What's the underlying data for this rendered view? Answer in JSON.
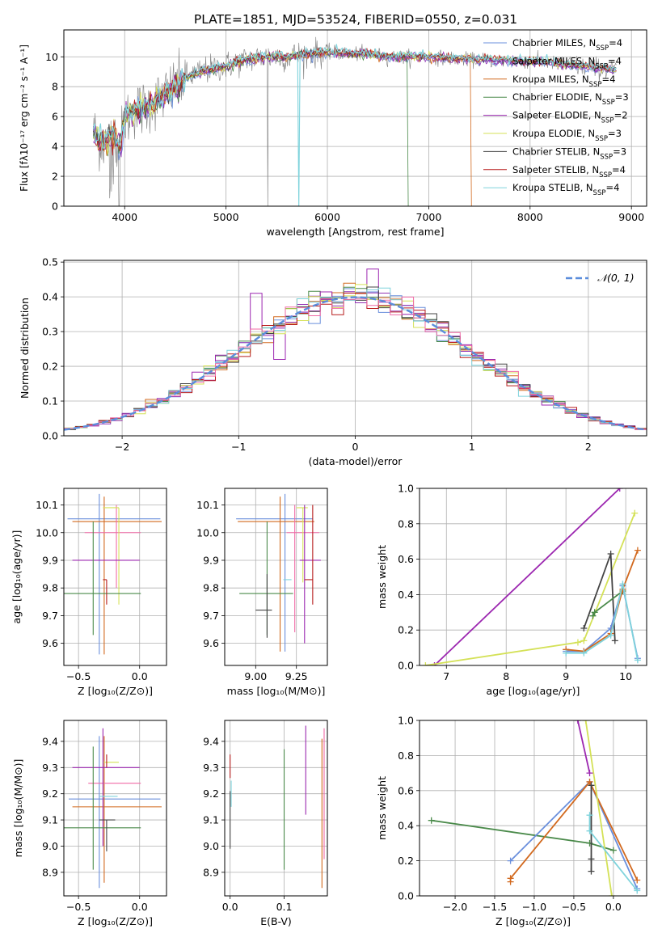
{
  "figure_title": "PLATE=1851, MJD=53524, FIBERID=0550, z=0.031",
  "colors": {
    "chabrier_miles": "#6a8fdc",
    "salpeter_miles": "#9232b4",
    "kroupa_miles": "#d2691e",
    "chabrier_elodie": "#4a8a4a",
    "salpeter_elodie": "#9c27b0",
    "kroupa_elodie": "#d4e157",
    "chabrier_stelib": "#444444",
    "salpeter_stelib": "#b71c1c",
    "kroupa_stelib": "#7fd3dc",
    "data": "#808080",
    "pink": "#f06aa6",
    "gauss": "#5b8ddb",
    "grid": "#b0b0b0"
  },
  "chart_data": [
    {
      "id": "spectrum",
      "type": "line",
      "xlabel": "wavelength [Angstrom, rest frame]",
      "ylabel": "Flux [fλ10⁻¹⁷ erg cm⁻² s⁻¹ A⁻¹]",
      "xlim": [
        3400,
        9150
      ],
      "ylim": [
        0,
        11.8
      ],
      "xticks": [
        4000,
        5000,
        6000,
        7000,
        8000,
        9000
      ],
      "yticks": [
        0,
        2,
        4,
        6,
        8,
        10
      ],
      "legend_position": "top-right",
      "legend": [
        {
          "label": "Chabrier MILES, N",
          "sub": "SSP",
          "suffix": "=4",
          "color": "#6a8fdc"
        },
        {
          "label": "Salpeter MILES, N",
          "sub": "SSP",
          "suffix": "=4",
          "color": "#9232b4"
        },
        {
          "label": "Kroupa MILES, N",
          "sub": "SSP",
          "suffix": "=4",
          "color": "#d2691e"
        },
        {
          "label": "Chabrier ELODIE, N",
          "sub": "SSP",
          "suffix": "=3",
          "color": "#4a8a4a"
        },
        {
          "label": "Salpeter ELODIE, N",
          "sub": "SSP",
          "suffix": "=2",
          "color": "#9c27b0"
        },
        {
          "label": "Kroupa ELODIE, N",
          "sub": "SSP",
          "suffix": "=3",
          "color": "#d4e157"
        },
        {
          "label": "Chabrier STELIB, N",
          "sub": "SSP",
          "suffix": "=3",
          "color": "#444444"
        },
        {
          "label": "Salpeter STELIB, N",
          "sub": "SSP",
          "suffix": "=4",
          "color": "#b71c1c"
        },
        {
          "label": "Kroupa STELIB, N",
          "sub": "SSP",
          "suffix": "=4",
          "color": "#7fd3dc"
        }
      ],
      "continuum_x": [
        3700,
        3750,
        3800,
        3850,
        3900,
        3950,
        4000,
        4100,
        4200,
        4300,
        4400,
        4500,
        4600,
        4800,
        5000,
        5200,
        5400,
        5600,
        5800,
        6000,
        6200,
        6400,
        6600,
        6800,
        7000,
        7200,
        7400,
        7600,
        7800,
        8000,
        8200,
        8400,
        8600,
        8850
      ],
      "continuum_y": [
        5.0,
        4.3,
        4.2,
        4.6,
        4.8,
        4.0,
        5.8,
        6.4,
        6.6,
        7.0,
        7.5,
        8.0,
        8.6,
        9.1,
        9.4,
        9.8,
        10.0,
        10.0,
        10.2,
        10.3,
        10.2,
        10.2,
        10.0,
        10.0,
        10.0,
        9.9,
        9.8,
        9.8,
        9.7,
        9.7,
        9.6,
        9.4,
        9.3,
        9.1
      ]
    },
    {
      "id": "residuals",
      "type": "bar",
      "xlabel": "(data-model)/error",
      "ylabel": "Normed distribution",
      "xlim": [
        -2.5,
        2.5
      ],
      "ylim": [
        0,
        0.505
      ],
      "xticks": [
        -2,
        -1,
        0,
        1,
        2
      ],
      "yticks": [
        0.0,
        0.1,
        0.2,
        0.3,
        0.4,
        0.5
      ],
      "legend_label": "𝒩(0, 1)",
      "legend_position": "top-right",
      "bin_width": 0.1
    },
    {
      "id": "age_vs_Z",
      "type": "scatter",
      "xlabel": "Z [log₁₀(Z/Z⊙)]",
      "ylabel": "age  [log₁₀(age/yr)]",
      "xlim": [
        -0.62,
        0.22
      ],
      "ylim": [
        9.52,
        10.16
      ],
      "xticks": [
        -0.5,
        0.0
      ],
      "yticks": [
        9.6,
        9.7,
        9.8,
        9.9,
        10.0,
        10.1
      ],
      "points": [
        {
          "model": "chabrier_miles",
          "x": -0.33,
          "xerr": [
            0.26,
            0.5
          ],
          "y": 10.05,
          "yerr": [
            0.49,
            0.09
          ]
        },
        {
          "model": "kroupa_miles",
          "x": -0.29,
          "xerr": [
            0.26,
            0.47
          ],
          "y": 10.04,
          "yerr": [
            0.48,
            0.09
          ]
        },
        {
          "model": "pink",
          "x": -0.19,
          "xerr": [
            0.26,
            0.2
          ],
          "y": 10.0,
          "yerr": [
            0.2,
            0.1
          ]
        },
        {
          "model": "kroupa_elodie",
          "x": -0.17,
          "xerr": [
            0.13,
            0.0
          ],
          "y": 10.09,
          "yerr": [
            0.35,
            0.0
          ]
        },
        {
          "model": "salpeter_elodie",
          "x": -0.3,
          "xerr": [
            0.25,
            0.3
          ],
          "y": 9.9,
          "yerr": [
            0.0,
            0.0
          ]
        },
        {
          "model": "chabrier_elodie",
          "x": -0.38,
          "xerr": [
            0.24,
            0.39
          ],
          "y": 9.78,
          "yerr": [
            0.15,
            0.26
          ]
        },
        {
          "model": "salpeter_stelib",
          "x": -0.27,
          "xerr": [
            0.03,
            0.0
          ],
          "y": 9.83,
          "yerr": [
            0.09,
            0.0
          ]
        },
        {
          "model": "chabrier_stelib",
          "x": -0.27,
          "xerr": [
            0.0,
            0.0
          ],
          "y": 9.72,
          "yerr": [
            0.0,
            0.0
          ]
        },
        {
          "model": "kroupa_stelib",
          "x": -0.33,
          "xerr": [
            0.0,
            0.0
          ],
          "y": 9.6,
          "yerr": [
            0.0,
            0.0
          ]
        }
      ]
    },
    {
      "id": "age_vs_mass",
      "type": "scatter",
      "xlabel": "mass [log₁₀(M/M⊙)]",
      "ylabel": "",
      "xlim": [
        8.81,
        9.44
      ],
      "ylim": [
        9.52,
        10.16
      ],
      "xticks": [
        9.0,
        9.25
      ],
      "xticklabels": [
        "9.00",
        "9.25"
      ],
      "yticks": [
        9.6,
        9.7,
        9.8,
        9.9,
        10.0,
        10.1
      ],
      "points": [
        {
          "model": "chabrier_miles",
          "x": 9.18,
          "xerr": [
            0.3,
            0.17
          ],
          "y": 10.05,
          "yerr": [
            0.48,
            0.09
          ]
        },
        {
          "model": "kroupa_miles",
          "x": 9.15,
          "xerr": [
            0.26,
            0.21
          ],
          "y": 10.04,
          "yerr": [
            0.47,
            0.09
          ]
        },
        {
          "model": "pink",
          "x": 9.24,
          "xerr": [
            0.05,
            0.15
          ],
          "y": 10.0,
          "yerr": [
            0.36,
            0.1
          ]
        },
        {
          "model": "kroupa_elodie",
          "x": 9.29,
          "xerr": [
            0.04,
            0.03
          ],
          "y": 10.09,
          "yerr": [
            0.27,
            0.0
          ]
        },
        {
          "model": "salpeter_elodie",
          "x": 9.3,
          "xerr": [
            0.03,
            0.1
          ],
          "y": 9.9,
          "yerr": [
            0.3,
            0.2
          ]
        },
        {
          "model": "chabrier_elodie",
          "x": 9.07,
          "xerr": [
            0.17,
            0.16
          ],
          "y": 9.78,
          "yerr": [
            0.15,
            0.26
          ]
        },
        {
          "model": "salpeter_stelib",
          "x": 9.35,
          "xerr": [
            0.05,
            0.0
          ],
          "y": 9.83,
          "yerr": [
            0.09,
            0.27
          ]
        },
        {
          "model": "chabrier_stelib",
          "x": 9.07,
          "xerr": [
            0.07,
            0.03
          ],
          "y": 9.72,
          "yerr": [
            0.1,
            0.13
          ]
        },
        {
          "model": "kroupa_stelib",
          "x": 9.19,
          "xerr": [
            0.02,
            0.03
          ],
          "y": 9.83,
          "yerr": [
            0.0,
            0.0
          ]
        }
      ]
    },
    {
      "id": "mass_weight_vs_age",
      "type": "line",
      "xlabel": "age  [log₁₀(age/yr)]",
      "ylabel": "mass weight",
      "xlim": [
        6.55,
        10.35
      ],
      "ylim": [
        0,
        1.0
      ],
      "xticks": [
        7,
        8,
        9,
        10
      ],
      "yticks": [
        0.0,
        0.2,
        0.4,
        0.6,
        0.8,
        1.0
      ],
      "series": [
        {
          "model": "salpeter_elodie",
          "x": [
            6.8,
            9.9
          ],
          "y": [
            0.0,
            1.0
          ]
        },
        {
          "model": "kroupa_elodie",
          "x": [
            6.65,
            9.2,
            9.3,
            10.15
          ],
          "y": [
            0.0,
            0.13,
            0.14,
            0.86
          ]
        },
        {
          "model": "chabrier_stelib",
          "x": [
            9.3,
            9.75,
            9.82
          ],
          "y": [
            0.21,
            0.63,
            0.14
          ]
        },
        {
          "model": "chabrier_elodie",
          "x": [
            9.45,
            9.48,
            9.95
          ],
          "y": [
            0.28,
            0.3,
            0.42
          ]
        },
        {
          "model": "chabrier_miles",
          "x": [
            9.0,
            9.3,
            9.75,
            9.95,
            10.2
          ],
          "y": [
            0.08,
            0.08,
            0.21,
            0.45,
            0.04
          ]
        },
        {
          "model": "kroupa_miles",
          "x": [
            9.0,
            9.3,
            9.75,
            9.95,
            10.2
          ],
          "y": [
            0.09,
            0.08,
            0.18,
            0.43,
            0.65
          ]
        },
        {
          "model": "kroupa_stelib",
          "x": [
            9.0,
            9.3,
            9.75,
            9.95,
            10.2
          ],
          "y": [
            0.07,
            0.07,
            0.17,
            0.46,
            0.03
          ]
        }
      ]
    },
    {
      "id": "mass_vs_Z",
      "type": "scatter",
      "xlabel": "Z [log₁₀(Z/Z⊙)]",
      "ylabel": "mass [log₁₀(M/M⊙)]",
      "xlim": [
        -0.62,
        0.22
      ],
      "ylim": [
        8.81,
        9.48
      ],
      "xticks": [
        -0.5,
        0.0
      ],
      "yticks": [
        8.9,
        9.0,
        9.1,
        9.2,
        9.3,
        9.4
      ],
      "points": [
        {
          "model": "chabrier_miles",
          "x": -0.33,
          "xerr": [
            0.25,
            0.5
          ],
          "y": 9.18,
          "yerr": [
            0.34,
            0.24
          ]
        },
        {
          "model": "kroupa_miles",
          "x": -0.29,
          "xerr": [
            0.26,
            0.47
          ],
          "y": 9.15,
          "yerr": [
            0.29,
            0.27
          ]
        },
        {
          "model": "pink",
          "x": -0.19,
          "xerr": [
            0.23,
            0.2
          ],
          "y": 9.24,
          "yerr": [
            0.0,
            0.0
          ]
        },
        {
          "model": "kroupa_elodie",
          "x": -0.17,
          "xerr": [
            0.13,
            0.0
          ],
          "y": 9.32,
          "yerr": [
            0.0,
            0.0
          ]
        },
        {
          "model": "salpeter_elodie",
          "x": -0.3,
          "xerr": [
            0.25,
            0.3
          ],
          "y": 9.3,
          "yerr": [
            0.3,
            0.15
          ]
        },
        {
          "model": "chabrier_elodie",
          "x": -0.38,
          "xerr": [
            0.24,
            0.39
          ],
          "y": 9.07,
          "yerr": [
            0.16,
            0.31
          ]
        },
        {
          "model": "salpeter_stelib",
          "x": -0.27,
          "xerr": [
            0.0,
            0.0
          ],
          "y": 9.3,
          "yerr": [
            0.0,
            0.05
          ]
        },
        {
          "model": "chabrier_stelib",
          "x": -0.27,
          "xerr": [
            0.06,
            0.07
          ],
          "y": 9.1,
          "yerr": [
            0.12,
            0.0
          ]
        },
        {
          "model": "kroupa_stelib",
          "x": -0.33,
          "xerr": [
            0.0,
            0.15
          ],
          "y": 9.19,
          "yerr": [
            0.0,
            0.0
          ]
        }
      ]
    },
    {
      "id": "mass_vs_ebv",
      "type": "scatter",
      "xlabel": "E(B-V)",
      "ylabel": "",
      "xlim": [
        -0.01,
        0.18
      ],
      "ylim": [
        8.81,
        9.48
      ],
      "xticks": [
        0.0,
        0.1
      ],
      "yticks": [
        8.9,
        9.0,
        9.1,
        9.2,
        9.3,
        9.4
      ],
      "points": [
        {
          "model": "chabrier_stelib",
          "x": 0.0,
          "xerr": [
            0.0,
            0.0
          ],
          "y": 9.1,
          "yerr": [
            0.11,
            0.11
          ]
        },
        {
          "model": "salpeter_stelib",
          "x": 0.0,
          "xerr": [
            0.0,
            0.0
          ],
          "y": 9.3,
          "yerr": [
            0.04,
            0.05
          ]
        },
        {
          "model": "kroupa_stelib",
          "x": 0.002,
          "xerr": [
            0.0,
            0.0
          ],
          "y": 9.2,
          "yerr": [
            0.05,
            0.05
          ]
        },
        {
          "model": "chabrier_elodie",
          "x": 0.1,
          "xerr": [
            0.0,
            0.0
          ],
          "y": 9.14,
          "yerr": [
            0.23,
            0.23
          ]
        },
        {
          "model": "salpeter_elodie",
          "x": 0.14,
          "xerr": [
            0.0,
            0.0
          ],
          "y": 9.29,
          "yerr": [
            0.17,
            0.17
          ]
        },
        {
          "model": "kroupa_miles",
          "x": 0.17,
          "xerr": [
            0.0,
            0.0
          ],
          "y": 9.14,
          "yerr": [
            0.3,
            0.27
          ]
        },
        {
          "model": "pink",
          "x": 0.174,
          "xerr": [
            0.0,
            0.0
          ],
          "y": 9.2,
          "yerr": [
            0.25,
            0.25
          ]
        }
      ]
    },
    {
      "id": "mass_weight_vs_Z",
      "type": "line",
      "xlabel": "Z [log₁₀(Z/Z⊙)]",
      "ylabel": "mass weight",
      "xlim": [
        -2.45,
        0.42
      ],
      "ylim": [
        0,
        1.0
      ],
      "xticks": [
        -2.0,
        -1.5,
        -1.0,
        -0.5,
        0.0
      ],
      "yticks": [
        0.0,
        0.2,
        0.4,
        0.6,
        0.8,
        1.0
      ],
      "series": [
        {
          "model": "chabrier_elodie",
          "x": [
            -2.3,
            -0.3,
            0.0
          ],
          "y": [
            0.43,
            0.3,
            0.26
          ]
        },
        {
          "model": "chabrier_miles",
          "x": [
            -1.3,
            -0.3,
            0.3
          ],
          "y": [
            0.2,
            0.65,
            0.04
          ]
        },
        {
          "model": "kroupa_miles",
          "x": [
            -1.3,
            -1.3,
            -0.3,
            0.3
          ],
          "y": [
            0.08,
            0.1,
            0.65,
            0.09
          ]
        },
        {
          "model": "kroupa_elodie",
          "x": [
            -0.35,
            -0.02
          ],
          "y": [
            1.0,
            0.0
          ]
        },
        {
          "model": "salpeter_elodie",
          "x": [
            -0.45,
            -0.3
          ],
          "y": [
            1.0,
            0.7
          ]
        },
        {
          "model": "chabrier_stelib",
          "x": [
            -0.28,
            -0.28,
            -0.28
          ],
          "y": [
            0.63,
            0.21,
            0.14
          ]
        },
        {
          "model": "kroupa_stelib",
          "x": [
            -0.3,
            -0.3,
            0.3
          ],
          "y": [
            0.46,
            0.37,
            0.03
          ]
        }
      ]
    }
  ]
}
